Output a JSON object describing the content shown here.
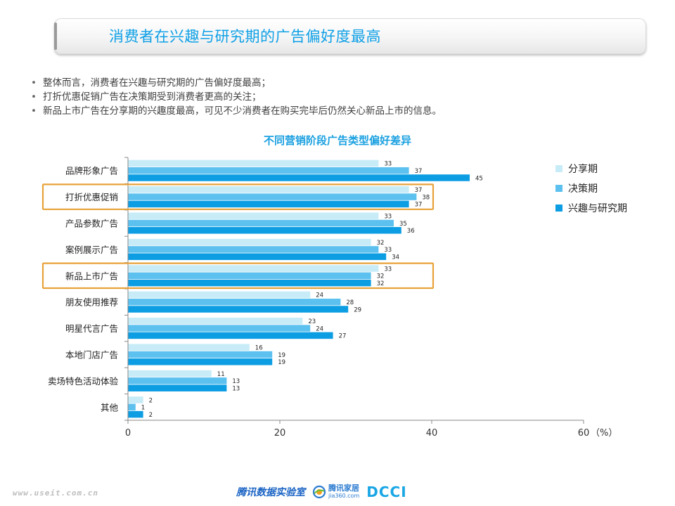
{
  "header": {
    "title": "消费者在兴趣与研究期的广告偏好度最高"
  },
  "bullets": [
    "整体而言，消费者在兴趣与研究期的广告偏好度最高；",
    "打折优惠促销广告在决策期受到消费者更高的关注；",
    "新品上市广告在分享期的兴趣度最高，可见不少消费者在购买完毕后仍然关心新品上市的信息。"
  ],
  "colors": {
    "title": "#0fa0e6",
    "series": [
      "#c7ecf8",
      "#5dc1ef",
      "#0c9de3"
    ],
    "highlight_box": "#e8a23a"
  },
  "chart_data": {
    "type": "bar",
    "orientation": "horizontal",
    "title": "不同营销阶段广告类型偏好差异",
    "unit_label": "（%）",
    "categories": [
      "品牌形象广告",
      "打折优惠促销",
      "产品参数广告",
      "案例展示广告",
      "新品上市广告",
      "朋友使用推荐",
      "明星代言广告",
      "本地门店广告",
      "卖场特色活动体验",
      "其他"
    ],
    "series": [
      {
        "name": "分享期",
        "values": [
          33,
          37,
          33,
          32,
          33,
          24,
          23,
          16,
          11,
          2
        ]
      },
      {
        "name": "决策期",
        "values": [
          37,
          38,
          35,
          33,
          32,
          28,
          24,
          19,
          13,
          1
        ]
      },
      {
        "name": "兴趣与研究期",
        "values": [
          45,
          37,
          36,
          34,
          32,
          29,
          27,
          19,
          13,
          2
        ]
      }
    ],
    "xlim": [
      0,
      60
    ],
    "xticks": [
      0,
      20,
      40,
      60
    ],
    "grid": false,
    "legend_position": "right",
    "highlighted_categories": [
      "打折优惠促销",
      "新品上市广告"
    ]
  },
  "footer": {
    "url": "www.useit.com.cn",
    "logo_lab": "腾讯数据实验室",
    "logo_jiaju": "腾讯家居",
    "logo_jiaju_sub": "jia360.com",
    "logo_dcci": "DCCI"
  }
}
